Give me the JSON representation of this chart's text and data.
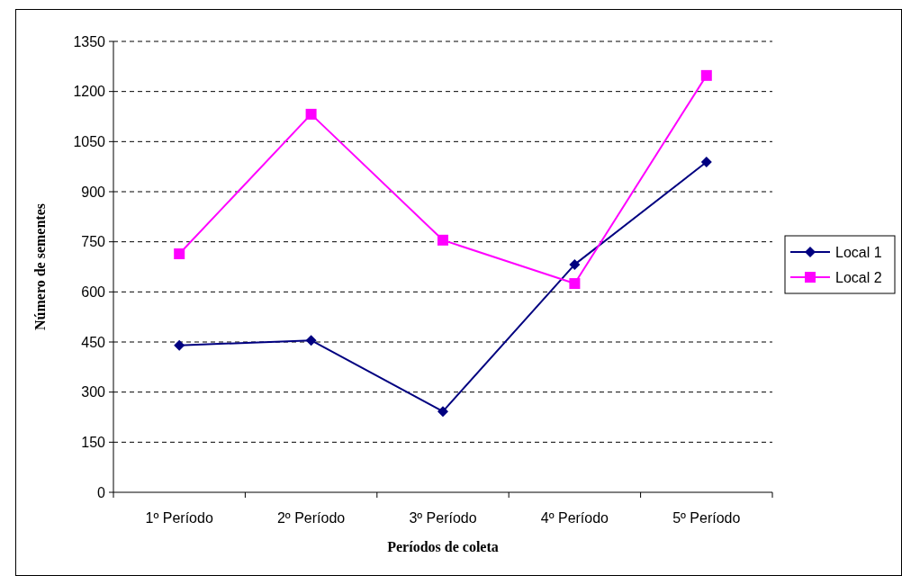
{
  "chart_data": {
    "type": "line",
    "xlabel": "Períodos de coleta",
    "ylabel": "Número de sementes",
    "categories": [
      "1º Período",
      "2º Período",
      "3º Período",
      "4º Período",
      "5º Período"
    ],
    "series": [
      {
        "name": "Local 1",
        "color": "#000080",
        "values": [
          440,
          455,
          242,
          682,
          989
        ],
        "marker": "diamond"
      },
      {
        "name": "Local 2",
        "color": "#ff00ff",
        "values": [
          714,
          1132,
          755,
          625,
          1248
        ],
        "marker": "square"
      }
    ],
    "ylim": [
      0,
      1350
    ],
    "yticks": [
      0,
      150,
      300,
      450,
      600,
      750,
      900,
      1050,
      1200,
      1350
    ],
    "grid": "y",
    "legend": "right",
    "line_style": "solid"
  }
}
